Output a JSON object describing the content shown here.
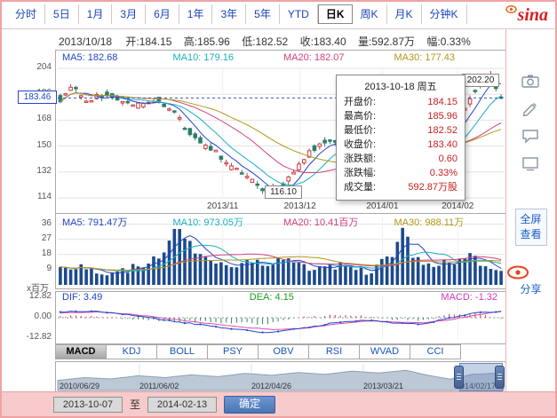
{
  "brand": {
    "logo_text": "sina"
  },
  "period_tabs": {
    "items": [
      {
        "label": "分时"
      },
      {
        "label": "5日"
      },
      {
        "label": "1月"
      },
      {
        "label": "3月"
      },
      {
        "label": "6月"
      },
      {
        "label": "1年"
      },
      {
        "label": "3年"
      },
      {
        "label": "5年"
      },
      {
        "label": "YTD"
      },
      {
        "label": "日K"
      },
      {
        "label": "周K"
      },
      {
        "label": "月K"
      },
      {
        "label": "分钟K"
      }
    ],
    "selected": "日K"
  },
  "info_bar": {
    "date": "2013/10/18",
    "pairs": [
      {
        "label": "开:",
        "value": "184.15"
      },
      {
        "label": "高:",
        "value": "185.96"
      },
      {
        "label": "低:",
        "value": "182.52"
      },
      {
        "label": "收:",
        "value": "183.40"
      },
      {
        "label": "量:",
        "value": "592.87万"
      },
      {
        "label": "幅:",
        "value": "0.33%"
      }
    ]
  },
  "main_chart": {
    "ma_labels": [
      {
        "label": "MA5: 182.68",
        "color": "#2244cc"
      },
      {
        "label": "MA10: 179.16",
        "color": "#18b0c0"
      },
      {
        "label": "MA20: 182.07",
        "color": "#d04080"
      },
      {
        "label": "MA30: 177.43",
        "color": "#b09818"
      }
    ],
    "y_ticks": [
      "204",
      "186",
      "168",
      "150",
      "132",
      "114"
    ],
    "current_price": "183.46",
    "high_marker": "202.20",
    "low_marker": "116.10",
    "x_ticks": [
      "2013/11",
      "2013/12",
      "2014/01",
      "2014/02"
    ],
    "up_color": "#c83c3c",
    "down_color": "#2e7d6e"
  },
  "tooltip": {
    "title": "2013-10-18 周五",
    "rows": [
      {
        "label": "开盘价:",
        "value": "184.15"
      },
      {
        "label": "最高价:",
        "value": "185.96"
      },
      {
        "label": "最低价:",
        "value": "182.52"
      },
      {
        "label": "收盘价:",
        "value": "183.40"
      },
      {
        "label": "涨跌额:",
        "value": "0.60"
      },
      {
        "label": "涨跌幅:",
        "value": "0.33%"
      },
      {
        "label": "成交量:",
        "value": "592.87万股"
      }
    ]
  },
  "volume_pane": {
    "ma_labels": [
      {
        "label": "MA5: 791.47万",
        "color": "#2244cc"
      },
      {
        "label": "MA10: 973.05万",
        "color": "#18b0c0"
      },
      {
        "label": "MA20: 10.41百万",
        "color": "#d04080"
      },
      {
        "label": "MA30: 988.11万",
        "color": "#b09818"
      }
    ],
    "y_ticks": [
      "36",
      "27",
      "18",
      "9"
    ],
    "unit_label": "x百万",
    "bar_color": "#1c4a8c"
  },
  "macd_pane": {
    "labels": [
      {
        "label": "DIF: 3.49",
        "color": "#2244cc"
      },
      {
        "label": "DEA: 4.15",
        "color": "#18a018"
      },
      {
        "label": "MACD: -1.32",
        "color": "#d838b8"
      }
    ],
    "y_ticks": [
      "12.82",
      "0.00",
      "-12.82"
    ]
  },
  "indicator_tabs": {
    "items": [
      {
        "label": "MACD"
      },
      {
        "label": "KDJ"
      },
      {
        "label": "BOLL"
      },
      {
        "label": "PSY"
      },
      {
        "label": "OBV"
      },
      {
        "label": "RSI"
      },
      {
        "label": "WVAD"
      },
      {
        "label": "CCI"
      }
    ],
    "selected": "MACD"
  },
  "navigator": {
    "dates": [
      {
        "label": "2010/06/29"
      },
      {
        "label": "2011/06/02"
      },
      {
        "label": "2012/04/26"
      },
      {
        "label": "2013/03/21"
      },
      {
        "label": "2014/02/17"
      }
    ]
  },
  "range_controls": {
    "start": "2013-10-07",
    "separator": "至",
    "end": "2014-02-13",
    "confirm_label": "确定"
  },
  "side_toolbar": {
    "fullscreen_label": "全屏查看",
    "share_label": "分享"
  },
  "shapes": {
    "price": [
      [
        0,
        183
      ],
      [
        0.03,
        190
      ],
      [
        0.06,
        180
      ],
      [
        0.1,
        186
      ],
      [
        0.14,
        182
      ],
      [
        0.18,
        178
      ],
      [
        0.22,
        184
      ],
      [
        0.26,
        172
      ],
      [
        0.3,
        158
      ],
      [
        0.34,
        148
      ],
      [
        0.38,
        138
      ],
      [
        0.42,
        128
      ],
      [
        0.46,
        120
      ],
      [
        0.49,
        117
      ],
      [
        0.52,
        127
      ],
      [
        0.55,
        139
      ],
      [
        0.58,
        150
      ],
      [
        0.61,
        155
      ],
      [
        0.64,
        149
      ],
      [
        0.67,
        153
      ],
      [
        0.7,
        157
      ],
      [
        0.73,
        152
      ],
      [
        0.76,
        147
      ],
      [
        0.79,
        143
      ],
      [
        0.82,
        140
      ],
      [
        0.85,
        150
      ],
      [
        0.88,
        160
      ],
      [
        0.91,
        172
      ],
      [
        0.94,
        186
      ],
      [
        0.96,
        196
      ],
      [
        0.975,
        199
      ],
      [
        0.99,
        192
      ],
      [
        1,
        183.4
      ]
    ],
    "volume": [
      [
        0,
        9
      ],
      [
        0.05,
        11
      ],
      [
        0.1,
        7
      ],
      [
        0.15,
        9
      ],
      [
        0.2,
        13
      ],
      [
        0.23,
        19
      ],
      [
        0.26,
        34
      ],
      [
        0.28,
        29
      ],
      [
        0.3,
        22
      ],
      [
        0.33,
        15
      ],
      [
        0.36,
        12
      ],
      [
        0.4,
        10
      ],
      [
        0.44,
        14
      ],
      [
        0.47,
        11
      ],
      [
        0.5,
        16
      ],
      [
        0.53,
        12
      ],
      [
        0.56,
        10
      ],
      [
        0.6,
        9
      ],
      [
        0.63,
        12
      ],
      [
        0.66,
        10
      ],
      [
        0.7,
        8
      ],
      [
        0.73,
        13
      ],
      [
        0.76,
        20
      ],
      [
        0.78,
        35
      ],
      [
        0.8,
        17
      ],
      [
        0.83,
        10
      ],
      [
        0.86,
        12
      ],
      [
        0.9,
        15
      ],
      [
        0.93,
        17
      ],
      [
        0.96,
        12
      ],
      [
        1,
        9
      ]
    ],
    "dif": [
      [
        0,
        3.5
      ],
      [
        0.08,
        4.2
      ],
      [
        0.16,
        2.0
      ],
      [
        0.24,
        -1.5
      ],
      [
        0.32,
        -4.5
      ],
      [
        0.4,
        -7.5
      ],
      [
        0.48,
        -9.5
      ],
      [
        0.56,
        -6.0
      ],
      [
        0.64,
        -2.5
      ],
      [
        0.7,
        -1.5
      ],
      [
        0.76,
        -3.5
      ],
      [
        0.82,
        -4.0
      ],
      [
        0.88,
        -0.5
      ],
      [
        0.94,
        3.0
      ],
      [
        1,
        3.49
      ]
    ],
    "dea": [
      [
        0,
        3.0
      ],
      [
        0.08,
        3.6
      ],
      [
        0.16,
        2.4
      ],
      [
        0.24,
        -0.5
      ],
      [
        0.32,
        -3.0
      ],
      [
        0.4,
        -5.5
      ],
      [
        0.48,
        -7.5
      ],
      [
        0.56,
        -6.5
      ],
      [
        0.64,
        -3.5
      ],
      [
        0.7,
        -2.0
      ],
      [
        0.76,
        -2.8
      ],
      [
        0.82,
        -3.2
      ],
      [
        0.88,
        -1.5
      ],
      [
        0.94,
        1.5
      ],
      [
        1,
        4.15
      ]
    ],
    "navigator": [
      [
        0,
        0.4
      ],
      [
        0.06,
        0.52
      ],
      [
        0.12,
        0.46
      ],
      [
        0.18,
        0.6
      ],
      [
        0.24,
        0.52
      ],
      [
        0.3,
        0.64
      ],
      [
        0.36,
        0.56
      ],
      [
        0.42,
        0.7
      ],
      [
        0.48,
        0.62
      ],
      [
        0.54,
        0.74
      ],
      [
        0.6,
        0.66
      ],
      [
        0.66,
        0.8
      ],
      [
        0.72,
        0.72
      ],
      [
        0.78,
        0.84
      ],
      [
        0.83,
        0.62
      ],
      [
        0.88,
        0.45
      ],
      [
        0.93,
        0.66
      ],
      [
        1,
        0.72
      ]
    ]
  }
}
